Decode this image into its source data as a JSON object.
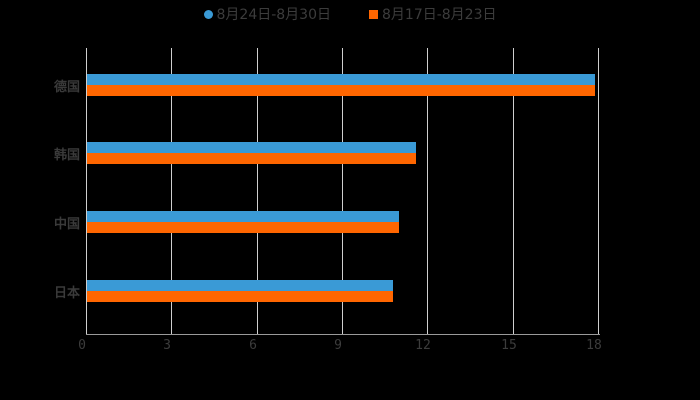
{
  "chart_data": {
    "type": "bar",
    "orientation": "horizontal",
    "title": "",
    "categories": [
      "德国",
      "韩国",
      "中国",
      "日本"
    ],
    "series": [
      {
        "name": "8月24日-8月30日",
        "color": "#3a9ad6",
        "values": [
          17.9,
          11.6,
          11.0,
          10.8
        ]
      },
      {
        "name": "8月17日-8月23日",
        "color": "#ff6600",
        "values": [
          17.9,
          11.6,
          11.0,
          10.8
        ]
      }
    ],
    "xlabel": "",
    "ylabel": "",
    "xlim": [
      0,
      18
    ],
    "x_ticks": [
      "0",
      "3",
      "6",
      "9",
      "12",
      "15",
      "18"
    ],
    "grid": true,
    "legend_position": "top"
  },
  "legend": {
    "items": [
      {
        "label": "8月24日-8月30日",
        "color": "#3a9ad6",
        "marker": "circle"
      },
      {
        "label": "8月17日-8月23日",
        "color": "#ff6600",
        "marker": "square"
      }
    ]
  }
}
